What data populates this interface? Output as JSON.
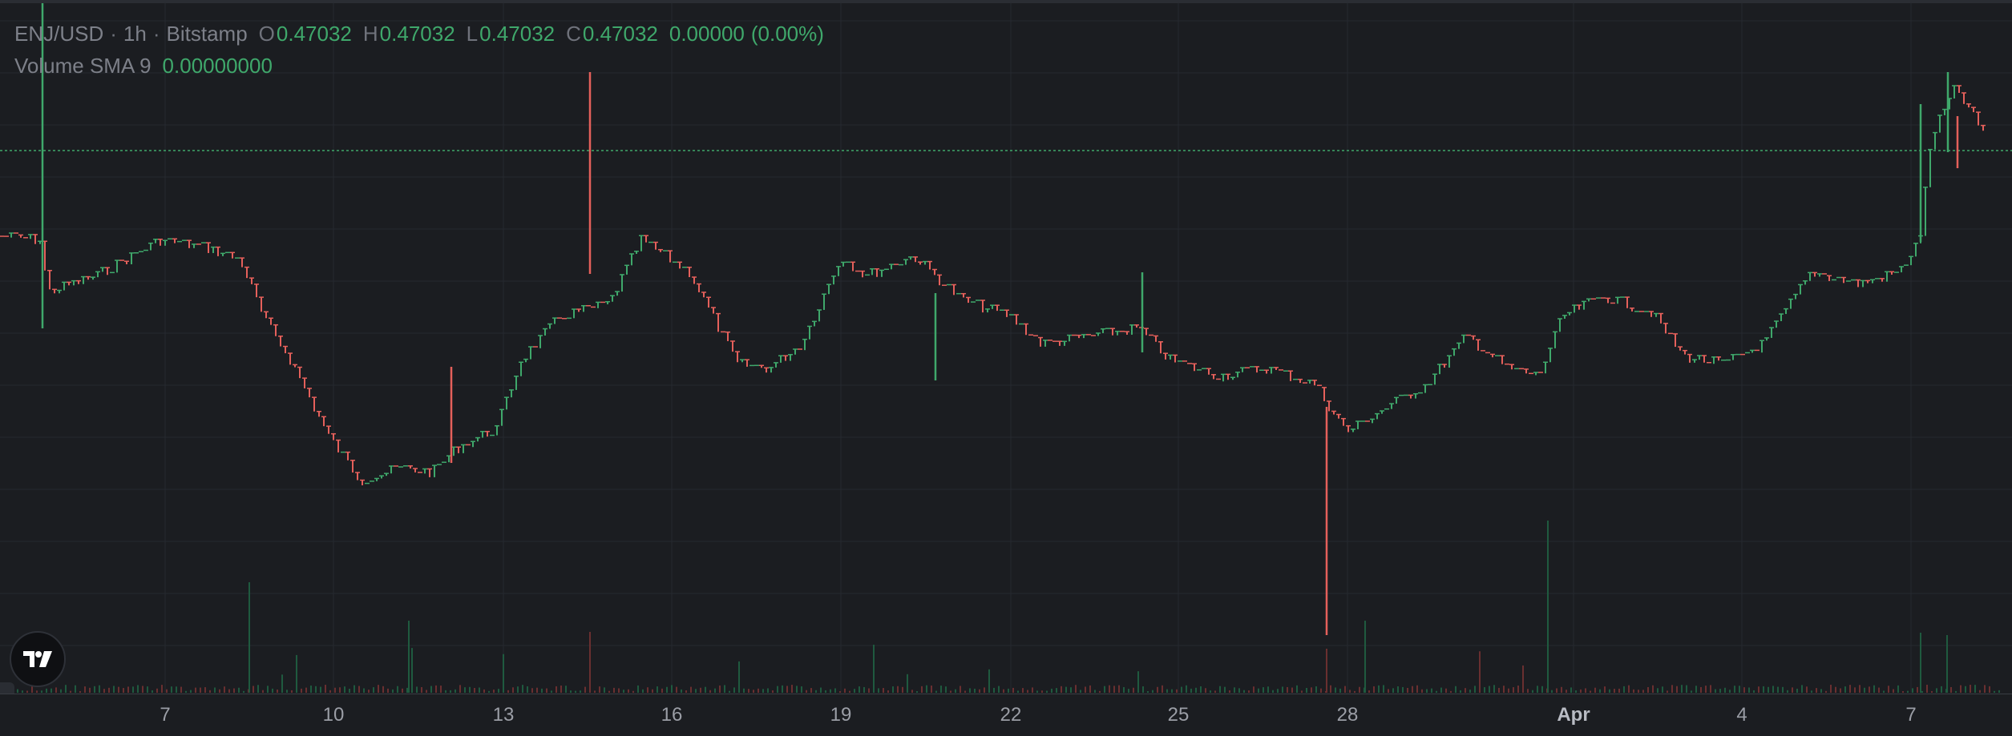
{
  "symbol": "ENJ/USD",
  "sep1": "·",
  "interval": "1h",
  "sep2": "·",
  "exchange": "Bitstamp",
  "ohlc": {
    "o_label": "O",
    "o": "0.47032",
    "h_label": "H",
    "h": "0.47032",
    "l_label": "L",
    "l": "0.47032",
    "c_label": "C",
    "c": "0.47032",
    "change": "0.00000",
    "change_pct": "(0.00%)"
  },
  "volume_indicator": {
    "label": "Volume SMA 9",
    "value": "0.00000000"
  },
  "time_axis": [
    "7",
    "10",
    "13",
    "16",
    "19",
    "22",
    "25",
    "28",
    "Apr",
    "4",
    "7"
  ],
  "colors": {
    "up": "#3fa86b",
    "down": "#e5605b",
    "background": "#1b1d21",
    "grid": "#262930",
    "last_price_line": "#3fa86b"
  },
  "icons": {
    "logo": "tradingview-logo-icon",
    "scroll": "chevron-left-icon"
  }
}
